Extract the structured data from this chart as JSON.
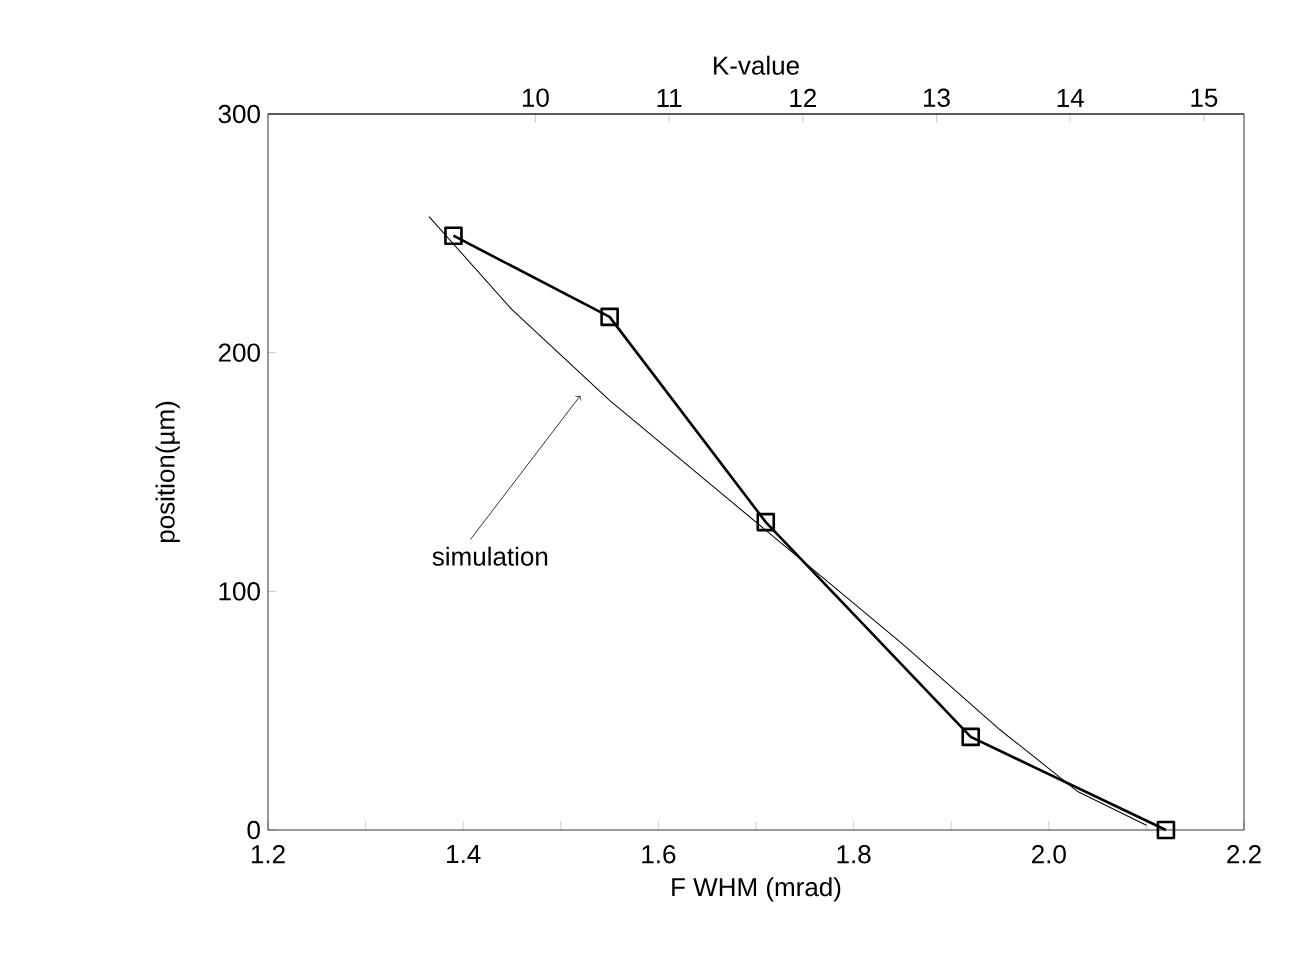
{
  "chart_data": {
    "type": "line",
    "xlabel": "F WHM (mrad)",
    "ylabel": "position(µm)",
    "x2label": "K-value",
    "xlim": [
      1.2,
      2.2
    ],
    "ylim": [
      0,
      300
    ],
    "xticks": [
      {
        "value": 1.2,
        "label": "1.2"
      },
      {
        "value": 1.3,
        "label": null
      },
      {
        "value": 1.4,
        "label": "1.4"
      },
      {
        "value": 1.5,
        "label": null
      },
      {
        "value": 1.6,
        "label": "1.6"
      },
      {
        "value": 1.7,
        "label": null
      },
      {
        "value": 1.8,
        "label": "1.8"
      },
      {
        "value": 1.9,
        "label": null
      },
      {
        "value": 2.0,
        "label": "2.0"
      },
      {
        "value": 2.1,
        "label": null
      },
      {
        "value": 2.2,
        "label": "2.2"
      }
    ],
    "yticks": [
      0,
      100,
      200,
      300
    ],
    "series": [
      {
        "color": "#000000",
        "marker": "square",
        "x": [
          1.39,
          1.55,
          1.71,
          1.92,
          2.12
        ],
        "values": [
          249,
          215,
          129,
          39,
          0
        ]
      },
      {
        "color": "#000000",
        "marker": "none",
        "x": [
          1.365,
          1.45,
          1.55,
          1.65,
          1.75,
          1.85,
          1.95,
          2.03,
          2.1
        ],
        "values": [
          257,
          218,
          180,
          146,
          112,
          78,
          42,
          16,
          2
        ]
      }
    ],
    "x2lim": [
      8,
      15.3
    ],
    "x2ticks": [
      10,
      11,
      12,
      13,
      14,
      15
    ],
    "annotations": [
      {
        "text": "simulation",
        "x": 1.52,
        "y": 182
      }
    ],
    "grid": false
  }
}
